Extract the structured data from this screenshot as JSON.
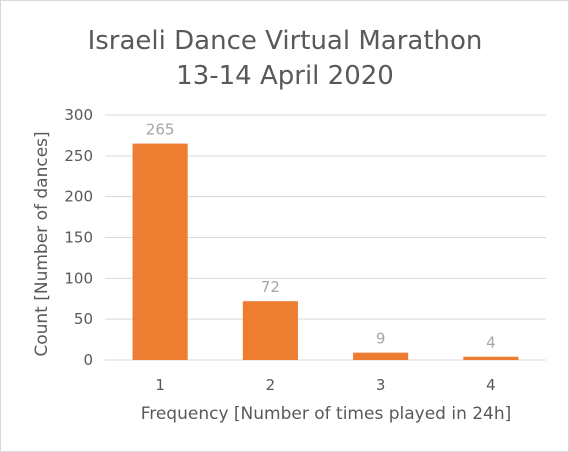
{
  "chart_data": {
    "type": "bar",
    "title": [
      "Israeli Dance Virtual Marathon",
      "13-14 April 2020"
    ],
    "categories": [
      "1",
      "2",
      "3",
      "4"
    ],
    "values": [
      265,
      72,
      9,
      4
    ],
    "data_labels": [
      "265",
      "72",
      "9",
      "4"
    ],
    "xlabel": "Frequency [Number of times played in 24h]",
    "ylabel": "Count [Number of dances]",
    "ylim": [
      0,
      300
    ],
    "yticks": [
      "0",
      "50",
      "100",
      "150",
      "200",
      "250",
      "300"
    ],
    "ytick_values": [
      0,
      50,
      100,
      150,
      200,
      250,
      300
    ],
    "grid": true,
    "legend": "none",
    "bar_color": "#ED7D31"
  }
}
